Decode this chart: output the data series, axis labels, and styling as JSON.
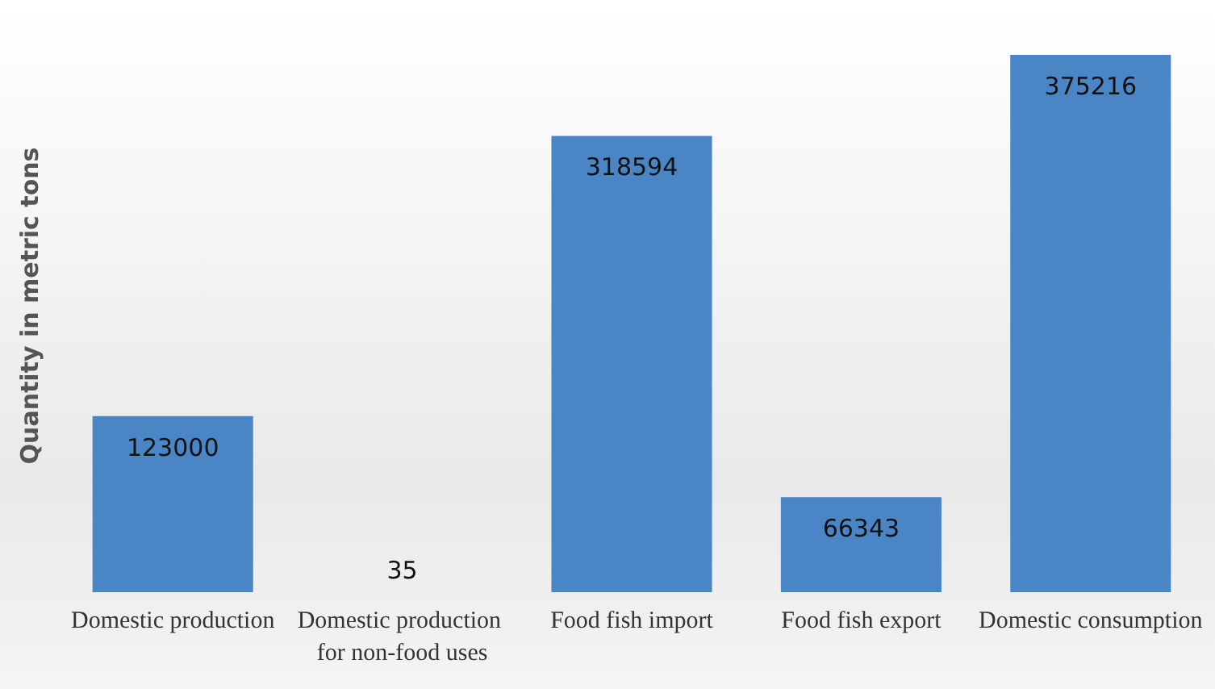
{
  "chart_data": {
    "type": "bar",
    "ylabel": "Quantity in metric tons",
    "categories": [
      "Domestic production",
      "Domestic production for non-food uses",
      "Food fish import",
      "Food fish export",
      "Domestic consumption"
    ],
    "values": [
      123000,
      35,
      318594,
      66343,
      375216
    ],
    "color": "#4a86c5",
    "data_labels": true,
    "relative": false,
    "grid": false
  }
}
